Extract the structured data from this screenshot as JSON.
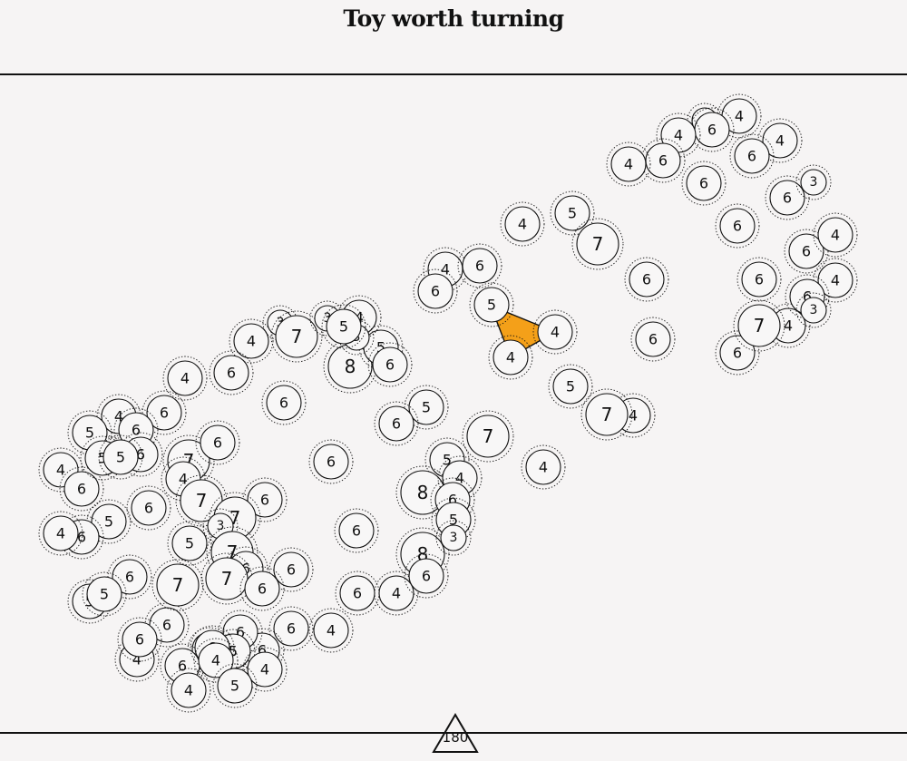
{
  "title": "Toy worth turning",
  "badge": {
    "value": "180",
    "icon": "triangle-icon"
  },
  "colors": {
    "background": "#f6f4f4",
    "stroke": "#111111",
    "fill": "#ffffff",
    "highlight": "#f4a019"
  },
  "tiles": [
    "4",
    "3",
    "6",
    "4",
    "4",
    "6",
    "6",
    "6",
    "4",
    "6",
    "3",
    "6",
    "6",
    "4",
    "6",
    "4",
    "4",
    "6",
    "3",
    "5",
    "7",
    "6",
    "5",
    "4",
    "4",
    "6",
    "6",
    "4",
    "6",
    "5",
    "4",
    "4",
    "6",
    "5",
    "7",
    "4",
    "6",
    "7",
    "5",
    "4",
    "6",
    "8",
    "6",
    "6",
    "3",
    "4",
    "7",
    "6",
    "4",
    "6",
    "5",
    "5",
    "7",
    "6",
    "7",
    "4",
    "3",
    "6",
    "3",
    "8",
    "4",
    "4",
    "6",
    "6",
    "5",
    "5",
    "4",
    "5",
    "6",
    "6",
    "7",
    "6",
    "6",
    "7",
    "6",
    "3",
    "5",
    "8",
    "6",
    "5",
    "4",
    "7",
    "6",
    "5",
    "4",
    "6",
    "6",
    "4",
    "6",
    "5",
    "5",
    "6",
    "4",
    "6",
    "6",
    "5",
    "6",
    "6",
    "6",
    "7",
    "7",
    "4",
    "3",
    "4",
    "6",
    "6",
    "6",
    "4",
    "5"
  ],
  "highlighted_tiles": [
    "5",
    "4",
    "4"
  ]
}
